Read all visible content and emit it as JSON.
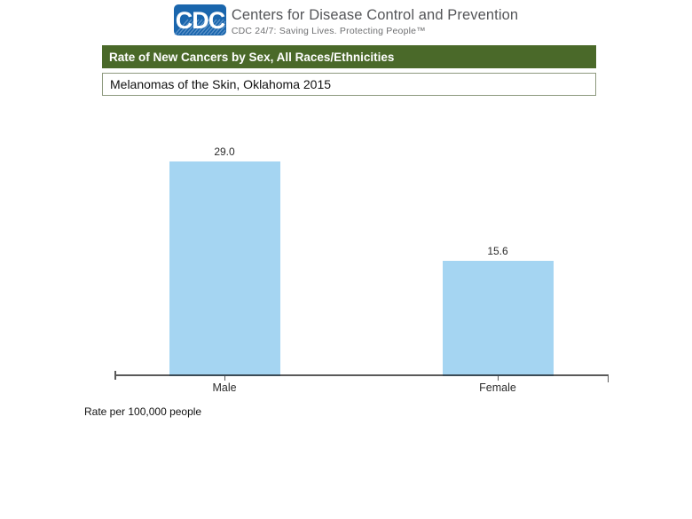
{
  "header": {
    "logo_text": "CDC",
    "org_name": "Centers for Disease Control and Prevention",
    "tagline": "CDC 24/7: Saving Lives. Protecting People™",
    "logo_color": "#1a66ad"
  },
  "banner": {
    "title": "Rate of New Cancers by Sex, All Races/Ethnicities",
    "bg_color": "#4a6929",
    "subtitle": "Melanomas of the Skin, Oklahoma 2015"
  },
  "chart_data": {
    "type": "bar",
    "categories": [
      "Male",
      "Female"
    ],
    "values": [
      29.0,
      15.6
    ],
    "value_labels": [
      "29.0",
      "15.6"
    ],
    "title": "Rate of New Cancers by Sex, All Races/Ethnicities",
    "subtitle": "Melanomas of the Skin, Oklahoma 2015",
    "xlabel": "",
    "ylabel": "Rate per 100,000 people",
    "ylim": [
      0,
      29
    ],
    "bar_color": "#a5d5f2",
    "axis_color": "#5a5a5a",
    "grid": false,
    "legend": false,
    "footnote": "Rate per 100,000 people"
  }
}
